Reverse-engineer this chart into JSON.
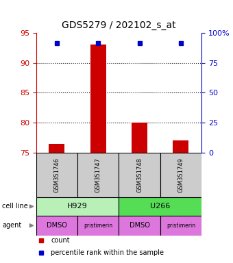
{
  "title": "GDS5279 / 202102_s_at",
  "samples": [
    "GSM351746",
    "GSM351747",
    "GSM351748",
    "GSM351749"
  ],
  "bar_values": [
    76.5,
    93.0,
    80.0,
    77.0
  ],
  "percentile_values": [
    91.5,
    91.5,
    91.5,
    91.5
  ],
  "ylim_left": [
    75,
    95
  ],
  "ylim_right": [
    0,
    100
  ],
  "yticks_left": [
    75,
    80,
    85,
    90,
    95
  ],
  "yticks_right": [
    0,
    25,
    50,
    75,
    100
  ],
  "ytick_labels_right": [
    "0",
    "25",
    "50",
    "75",
    "100%"
  ],
  "cell_line_labels": [
    "H929",
    "U266"
  ],
  "cell_line_spans": [
    2,
    2
  ],
  "cell_line_colors": [
    "#b8f0b8",
    "#55dd55"
  ],
  "agent_labels": [
    "DMSO",
    "pristimerin",
    "DMSO",
    "pristimerin"
  ],
  "agent_color": "#dd77dd",
  "bar_color": "#cc0000",
  "dot_color": "#0000cc",
  "sample_box_color": "#cccccc",
  "left_axis_color": "#cc0000",
  "right_axis_color": "#0000cc",
  "legend_count_color": "#cc0000",
  "legend_pct_color": "#0000cc",
  "n_samples": 4
}
